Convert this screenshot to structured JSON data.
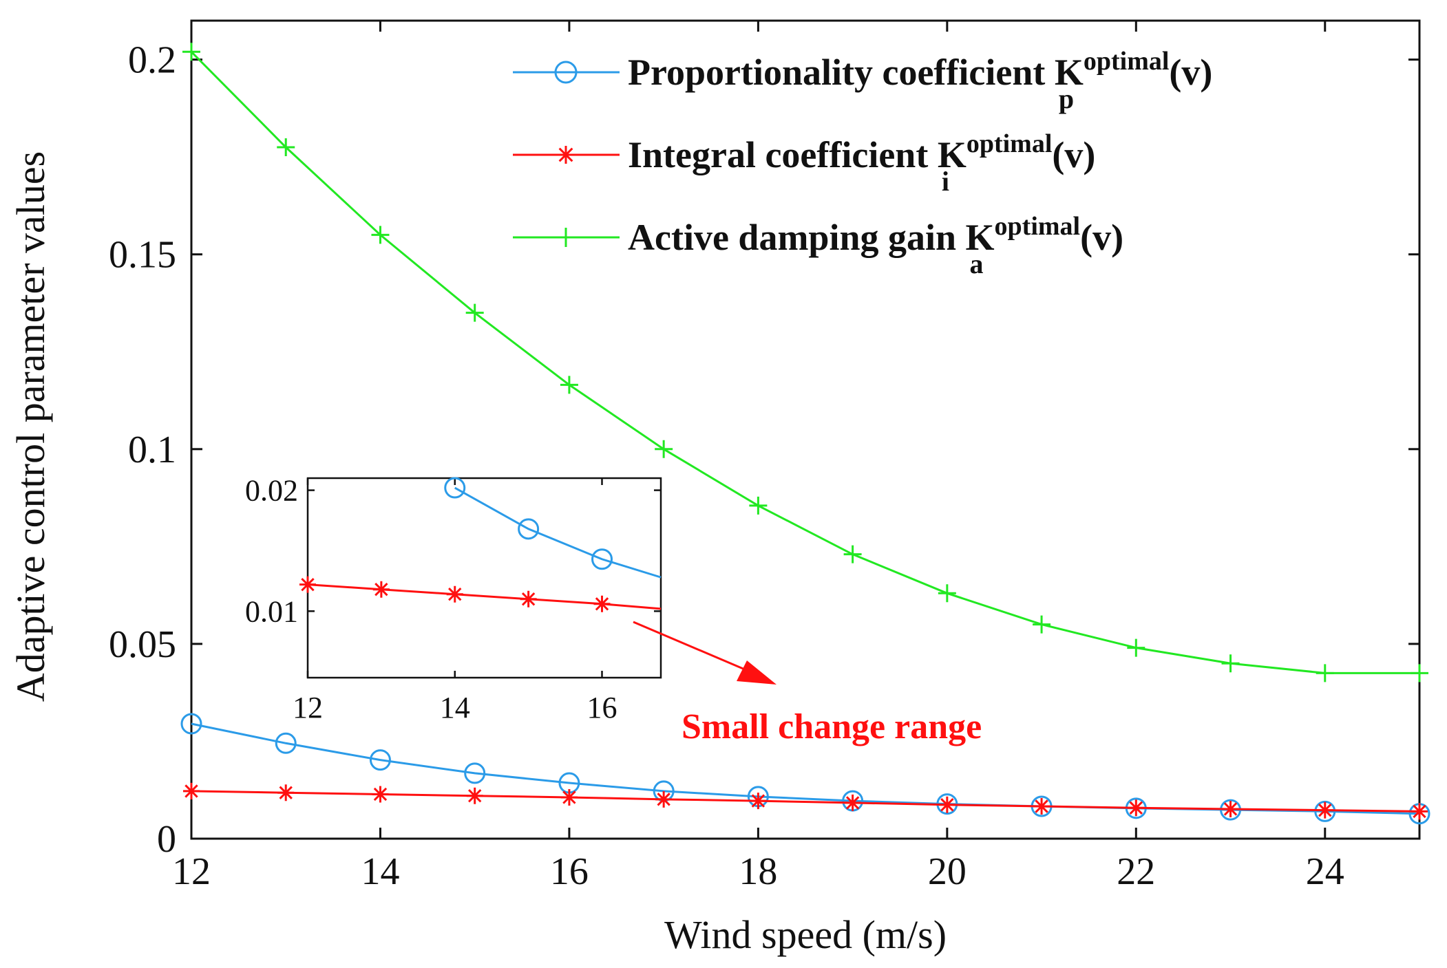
{
  "chart_data": {
    "type": "line",
    "xlabel": "Wind speed (m/s)",
    "ylabel": "Adaptive control parameter values",
    "xlim": [
      12,
      25
    ],
    "ylim": [
      0,
      0.21
    ],
    "x_ticks": [
      "12",
      "14",
      "16",
      "18",
      "20",
      "22",
      "24"
    ],
    "y_ticks": [
      "0",
      "0.05",
      "0.1",
      "0.15",
      "0.2"
    ],
    "x": [
      12,
      13,
      14,
      15,
      16,
      17,
      18,
      19,
      20,
      21,
      22,
      23,
      24,
      25
    ],
    "series": [
      {
        "name": "Proportionality coefficient",
        "symbol": "K",
        "superscript": "optimal",
        "subscript": "p",
        "suffix": "(v)",
        "color": "#2b9be8",
        "marker": "circle",
        "values": [
          0.0295,
          0.0245,
          0.0202,
          0.0168,
          0.0143,
          0.0122,
          0.0108,
          0.0097,
          0.0089,
          0.0083,
          0.0078,
          0.0074,
          0.007,
          0.0064
        ]
      },
      {
        "name": "Integral coefficient",
        "symbol": "K",
        "superscript": "optimal",
        "subscript": "i",
        "suffix": "(v)",
        "color": "#ff1010",
        "marker": "star",
        "values": [
          0.0122,
          0.0118,
          0.0114,
          0.011,
          0.0106,
          0.0101,
          0.0097,
          0.0092,
          0.0087,
          0.0083,
          0.0079,
          0.0076,
          0.0073,
          0.007
        ]
      },
      {
        "name": "Active damping gain",
        "symbol": "K",
        "superscript": "optimal",
        "subscript": "a",
        "suffix": "(v)",
        "color": "#22e822",
        "marker": "plus",
        "values": [
          0.202,
          0.1775,
          0.155,
          0.135,
          0.1165,
          0.1,
          0.0855,
          0.073,
          0.063,
          0.055,
          0.049,
          0.045,
          0.0425,
          0.0425
        ]
      }
    ],
    "inset": {
      "xlim": [
        12,
        16.8
      ],
      "ylim": [
        0.0045,
        0.021
      ],
      "x_ticks": [
        "12",
        "14",
        "16"
      ],
      "y_ticks": [
        "0.01",
        "0.02"
      ],
      "series": [
        {
          "ref": "Proportionality coefficient",
          "x": [
            14,
            15,
            16,
            16.8
          ],
          "values": [
            0.0202,
            0.0168,
            0.0143,
            0.0128
          ],
          "marker_count": 3
        },
        {
          "ref": "Integral coefficient",
          "x": [
            12,
            13,
            14,
            15,
            16,
            16.8
          ],
          "values": [
            0.0122,
            0.0118,
            0.0114,
            0.011,
            0.0106,
            0.0102
          ],
          "marker_count": 5
        }
      ]
    },
    "annotation": {
      "text": "Small change range",
      "color": "#ff1010"
    },
    "legend_position": "top-right"
  }
}
